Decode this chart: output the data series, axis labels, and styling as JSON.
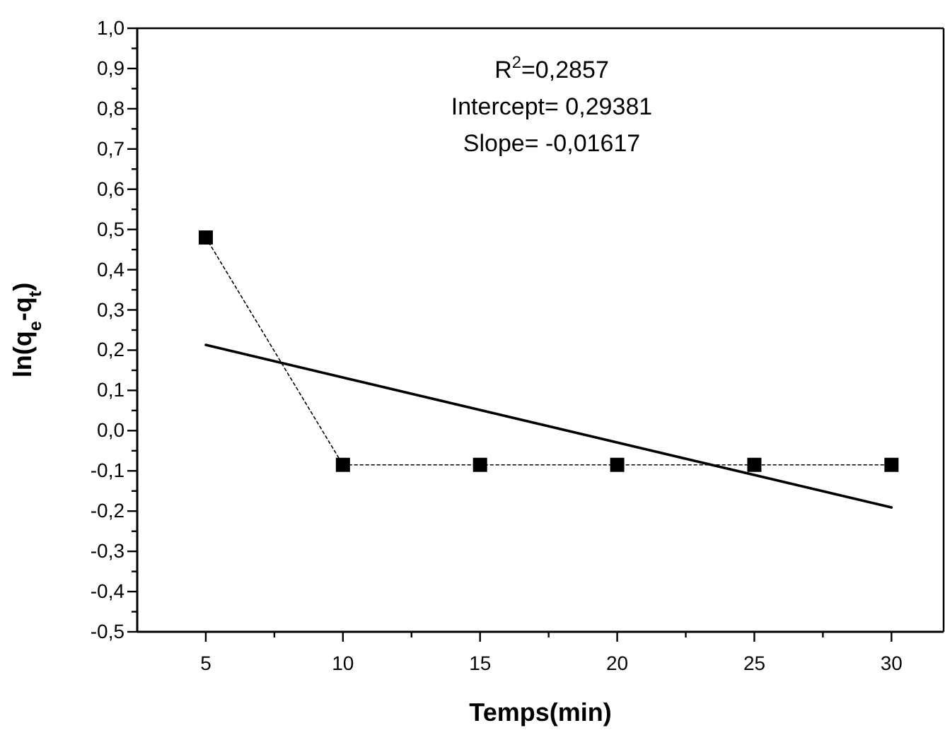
{
  "chart_data": {
    "type": "line",
    "xlabel": "Temps(min)",
    "ylabel": "ln(q$_{e}$-q$_{t}$)",
    "xlim": [
      2.5,
      31.9
    ],
    "ylim": [
      -0.5,
      1.0
    ],
    "xticks": [
      5,
      {
        "value": 7.5,
        "label": null
      },
      10,
      {
        "value": 12.5,
        "label": null
      },
      15,
      {
        "value": 17.5,
        "label": null
      },
      20,
      {
        "value": 22.5,
        "label": null
      },
      25,
      {
        "value": 27.5,
        "label": null
      },
      30
    ],
    "yticks": [
      {
        "value": -0.5,
        "label": "-0,5"
      },
      {
        "value": -0.45,
        "label": null
      },
      {
        "value": -0.4,
        "label": "-0,4"
      },
      {
        "value": -0.35,
        "label": null
      },
      {
        "value": -0.3,
        "label": "-0,3"
      },
      {
        "value": -0.25,
        "label": null
      },
      {
        "value": -0.2,
        "label": "-0,2"
      },
      {
        "value": -0.15,
        "label": null
      },
      {
        "value": -0.1,
        "label": "-0,1"
      },
      {
        "value": -0.05,
        "label": null
      },
      {
        "value": 0,
        "label": "0,0"
      },
      {
        "value": 0.05,
        "label": null
      },
      {
        "value": 0.1,
        "label": "0,1"
      },
      {
        "value": 0.15,
        "label": null
      },
      {
        "value": 0.2,
        "label": "0,2"
      },
      {
        "value": 0.25,
        "label": null
      },
      {
        "value": 0.3,
        "label": "0,3"
      },
      {
        "value": 0.35,
        "label": null
      },
      {
        "value": 0.4,
        "label": "0,4"
      },
      {
        "value": 0.45,
        "label": null
      },
      {
        "value": 0.5,
        "label": "0,5"
      },
      {
        "value": 0.55,
        "label": null
      },
      {
        "value": 0.6,
        "label": "0,6"
      },
      {
        "value": 0.65,
        "label": null
      },
      {
        "value": 0.7,
        "label": "0,7"
      },
      {
        "value": 0.75,
        "label": null
      },
      {
        "value": 0.8,
        "label": "0,8"
      },
      {
        "value": 0.85,
        "label": null
      },
      {
        "value": 0.9,
        "label": "0,9"
      },
      {
        "value": 0.95,
        "label": null
      },
      {
        "value": 1.0,
        "label": "1,0"
      }
    ],
    "grid": false,
    "series": [
      {
        "color": "#000000",
        "marker": "square",
        "line_style": "dotted",
        "x": [
          5,
          10,
          15,
          20,
          25,
          30
        ],
        "values": [
          0.48,
          -0.085,
          -0.085,
          -0.085,
          -0.085,
          -0.085
        ]
      },
      {
        "color": "#000000",
        "marker": "none",
        "line_style": "solid",
        "x": [
          5,
          30
        ],
        "values": [
          0.213,
          -0.191
        ]
      }
    ],
    "annotations": [
      "R$^{2}$=0,2857",
      "Intercept= 0,29381",
      "Slope= -0,01617"
    ]
  }
}
